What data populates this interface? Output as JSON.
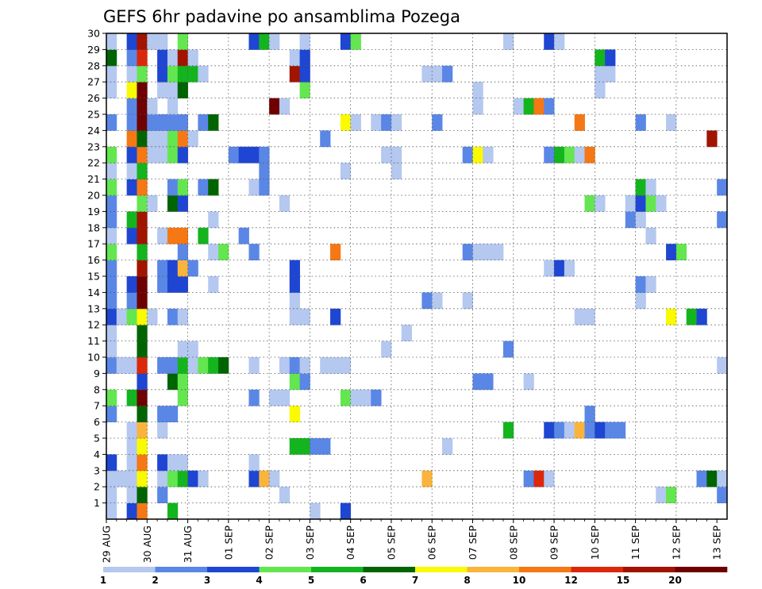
{
  "chart_data": {
    "type": "heatmap",
    "title": "GEFS 6hr padavine po ansamblima Pozega",
    "xlabel": "",
    "ylabel": "",
    "x_tick_labels": [
      "29 AUG",
      "30 AUG",
      "31 AUG",
      "01 SEP",
      "02 SEP",
      "03 SEP",
      "04 SEP",
      "05 SEP",
      "06 SEP",
      "07 SEP",
      "08 SEP",
      "09 SEP",
      "10 SEP",
      "11 SEP",
      "12 SEP",
      "13 SEP"
    ],
    "xlim": [
      0,
      61
    ],
    "y_tick_labels": [
      "1",
      "2",
      "3",
      "4",
      "5",
      "6",
      "7",
      "8",
      "9",
      "10",
      "11",
      "12",
      "13",
      "14",
      "15",
      "16",
      "17",
      "18",
      "19",
      "20",
      "21",
      "22",
      "23",
      "24",
      "25",
      "26",
      "27",
      "28",
      "29",
      "30"
    ],
    "ylim": [
      0,
      30
    ],
    "grid": true,
    "colorbar": {
      "levels": [
        1,
        2,
        3,
        4,
        5,
        6,
        7,
        8,
        10,
        12,
        15,
        20
      ],
      "labels": [
        "1",
        "2",
        "3",
        "4",
        "5",
        "6",
        "7",
        "8",
        "10",
        "12",
        "15",
        "20"
      ],
      "colors": [
        "#b4c8f0",
        "#5a87e6",
        "#1e46d2",
        "#64e650",
        "#14b41e",
        "#006400",
        "#fafa00",
        "#fab43c",
        "#f57814",
        "#dc280a",
        "#a01400",
        "#6e0000"
      ]
    },
    "member_rows": {
      "1": [
        [
          0,
          1,
          1
        ],
        [
          2,
          1,
          3
        ],
        [
          3,
          1,
          9
        ],
        [
          6,
          1,
          5
        ],
        [
          20,
          1,
          1
        ],
        [
          23,
          1,
          3
        ]
      ],
      "2": [
        [
          0,
          1,
          1
        ],
        [
          2,
          1,
          1
        ],
        [
          3,
          1,
          6
        ],
        [
          5,
          1,
          2
        ],
        [
          17,
          1,
          1
        ],
        [
          54,
          1,
          1
        ],
        [
          55,
          1,
          4
        ],
        [
          60,
          1,
          2
        ]
      ],
      "3": [
        [
          0,
          2,
          1
        ],
        [
          2,
          1,
          1
        ],
        [
          3,
          1,
          7
        ],
        [
          5,
          1,
          1
        ],
        [
          6,
          1,
          4
        ],
        [
          7,
          1,
          5
        ],
        [
          8,
          1,
          3
        ],
        [
          9,
          1,
          1
        ],
        [
          14,
          1,
          3
        ],
        [
          15,
          1,
          8
        ],
        [
          16,
          1,
          1
        ],
        [
          31,
          1,
          8
        ],
        [
          41,
          1,
          2
        ],
        [
          42,
          1,
          10
        ],
        [
          43,
          1,
          1
        ],
        [
          58,
          1,
          2
        ],
        [
          59,
          1,
          6
        ],
        [
          60,
          1,
          1
        ]
      ],
      "4": [
        [
          0,
          1,
          3
        ],
        [
          2,
          1,
          1
        ],
        [
          3,
          1,
          9
        ],
        [
          5,
          1,
          3
        ],
        [
          6,
          2,
          1
        ],
        [
          14,
          1,
          1
        ]
      ],
      "5": [
        [
          2,
          1,
          1
        ],
        [
          3,
          1,
          7
        ],
        [
          18,
          2,
          5
        ],
        [
          20,
          2,
          2
        ],
        [
          33,
          1,
          1
        ]
      ],
      "6": [
        [
          2,
          1,
          1
        ],
        [
          3,
          1,
          8
        ],
        [
          5,
          1,
          1
        ],
        [
          39,
          1,
          5
        ],
        [
          43,
          1,
          3
        ],
        [
          44,
          1,
          2
        ],
        [
          45,
          1,
          1
        ],
        [
          46,
          1,
          8
        ],
        [
          47,
          1,
          2
        ],
        [
          48,
          1,
          3
        ],
        [
          49,
          2,
          2
        ]
      ],
      "7": [
        [
          0,
          1,
          2
        ],
        [
          3,
          1,
          6
        ],
        [
          5,
          2,
          2
        ],
        [
          18,
          1,
          7
        ],
        [
          47,
          1,
          2
        ]
      ],
      "8": [
        [
          0,
          1,
          4
        ],
        [
          2,
          1,
          5
        ],
        [
          3,
          1,
          12
        ],
        [
          7,
          1,
          4
        ],
        [
          14,
          1,
          2
        ],
        [
          16,
          2,
          1
        ],
        [
          23,
          1,
          4
        ],
        [
          24,
          2,
          1
        ],
        [
          26,
          1,
          2
        ]
      ],
      "9": [
        [
          3,
          1,
          3
        ],
        [
          6,
          1,
          6
        ],
        [
          7,
          1,
          4
        ],
        [
          18,
          1,
          4
        ],
        [
          19,
          1,
          2
        ],
        [
          36,
          2,
          2
        ],
        [
          41,
          1,
          1
        ]
      ],
      "10": [
        [
          0,
          1,
          2
        ],
        [
          1,
          1,
          1
        ],
        [
          2,
          1,
          1
        ],
        [
          3,
          1,
          10
        ],
        [
          5,
          2,
          2
        ],
        [
          7,
          1,
          5
        ],
        [
          8,
          1,
          1
        ],
        [
          9,
          1,
          4
        ],
        [
          10,
          1,
          5
        ],
        [
          11,
          1,
          6
        ],
        [
          14,
          1,
          1
        ],
        [
          17,
          1,
          1
        ],
        [
          18,
          1,
          2
        ],
        [
          19,
          1,
          1
        ],
        [
          21,
          3,
          1
        ],
        [
          60,
          1,
          1
        ]
      ],
      "11": [
        [
          0,
          1,
          1
        ],
        [
          3,
          1,
          6
        ],
        [
          7,
          2,
          1
        ],
        [
          27,
          1,
          1
        ],
        [
          39,
          1,
          2
        ]
      ],
      "12": [
        [
          0,
          1,
          1
        ],
        [
          3,
          1,
          6
        ],
        [
          29,
          1,
          1
        ]
      ],
      "13": [
        [
          0,
          1,
          3
        ],
        [
          1,
          1,
          1
        ],
        [
          2,
          1,
          4
        ],
        [
          3,
          1,
          7
        ],
        [
          4,
          1,
          1
        ],
        [
          6,
          1,
          2
        ],
        [
          7,
          1,
          1
        ],
        [
          18,
          2,
          1
        ],
        [
          22,
          1,
          3
        ],
        [
          46,
          2,
          1
        ],
        [
          55,
          1,
          7
        ],
        [
          57,
          1,
          5
        ],
        [
          58,
          1,
          3
        ]
      ],
      "14": [
        [
          0,
          1,
          2
        ],
        [
          2,
          1,
          2
        ],
        [
          3,
          1,
          12
        ],
        [
          18,
          1,
          1
        ],
        [
          31,
          1,
          2
        ],
        [
          32,
          1,
          1
        ],
        [
          35,
          1,
          1
        ],
        [
          52,
          1,
          1
        ]
      ],
      "15": [
        [
          0,
          1,
          2
        ],
        [
          2,
          1,
          3
        ],
        [
          3,
          1,
          12
        ],
        [
          5,
          1,
          2
        ],
        [
          6,
          2,
          3
        ],
        [
          10,
          1,
          1
        ],
        [
          18,
          1,
          3
        ],
        [
          52,
          1,
          2
        ],
        [
          53,
          1,
          1
        ]
      ],
      "16": [
        [
          0,
          1,
          2
        ],
        [
          3,
          1,
          11
        ],
        [
          5,
          1,
          2
        ],
        [
          6,
          1,
          3
        ],
        [
          7,
          1,
          8
        ],
        [
          8,
          1,
          2
        ],
        [
          18,
          1,
          3
        ],
        [
          43,
          1,
          1
        ],
        [
          44,
          1,
          3
        ],
        [
          45,
          1,
          1
        ]
      ],
      "17": [
        [
          0,
          1,
          4
        ],
        [
          3,
          1,
          5
        ],
        [
          7,
          1,
          2
        ],
        [
          10,
          1,
          1
        ],
        [
          11,
          1,
          4
        ],
        [
          14,
          1,
          2
        ],
        [
          22,
          1,
          9
        ],
        [
          35,
          1,
          2
        ],
        [
          36,
          3,
          1
        ],
        [
          55,
          1,
          3
        ],
        [
          56,
          1,
          4
        ]
      ],
      "18": [
        [
          0,
          1,
          1
        ],
        [
          2,
          1,
          3
        ],
        [
          3,
          1,
          11
        ],
        [
          5,
          1,
          1
        ],
        [
          6,
          2,
          9
        ],
        [
          9,
          1,
          5
        ],
        [
          13,
          1,
          2
        ],
        [
          53,
          1,
          1
        ]
      ],
      "19": [
        [
          0,
          1,
          2
        ],
        [
          2,
          1,
          5
        ],
        [
          3,
          1,
          11
        ],
        [
          10,
          1,
          1
        ],
        [
          51,
          1,
          2
        ],
        [
          52,
          1,
          1
        ],
        [
          60,
          1,
          2
        ]
      ],
      "20": [
        [
          0,
          1,
          2
        ],
        [
          3,
          1,
          4
        ],
        [
          4,
          1,
          1
        ],
        [
          6,
          1,
          6
        ],
        [
          7,
          1,
          3
        ],
        [
          17,
          1,
          1
        ],
        [
          47,
          1,
          4
        ],
        [
          48,
          1,
          1
        ],
        [
          51,
          1,
          1
        ],
        [
          52,
          1,
          3
        ],
        [
          53,
          1,
          4
        ],
        [
          54,
          1,
          1
        ]
      ],
      "21": [
        [
          0,
          1,
          4
        ],
        [
          2,
          1,
          3
        ],
        [
          3,
          1,
          9
        ],
        [
          6,
          1,
          2
        ],
        [
          7,
          1,
          4
        ],
        [
          9,
          1,
          2
        ],
        [
          10,
          1,
          6
        ],
        [
          14,
          1,
          1
        ],
        [
          15,
          1,
          2
        ],
        [
          52,
          1,
          5
        ],
        [
          53,
          1,
          1
        ],
        [
          60,
          1,
          2
        ]
      ],
      "22": [
        [
          0,
          1,
          1
        ],
        [
          2,
          1,
          1
        ],
        [
          3,
          1,
          5
        ],
        [
          15,
          1,
          2
        ],
        [
          23,
          1,
          1
        ],
        [
          28,
          1,
          1
        ]
      ],
      "23": [
        [
          0,
          1,
          4
        ],
        [
          2,
          1,
          3
        ],
        [
          3,
          1,
          9
        ],
        [
          4,
          1,
          1
        ],
        [
          5,
          1,
          1
        ],
        [
          6,
          1,
          4
        ],
        [
          7,
          1,
          3
        ],
        [
          12,
          1,
          2
        ],
        [
          13,
          2,
          3
        ],
        [
          15,
          1,
          2
        ],
        [
          27,
          2,
          1
        ],
        [
          35,
          1,
          2
        ],
        [
          36,
          1,
          7
        ],
        [
          37,
          1,
          1
        ],
        [
          43,
          1,
          2
        ],
        [
          44,
          1,
          5
        ],
        [
          45,
          1,
          4
        ],
        [
          46,
          1,
          1
        ],
        [
          47,
          1,
          9
        ]
      ],
      "24": [
        [
          2,
          1,
          9
        ],
        [
          3,
          1,
          6
        ],
        [
          4,
          2,
          1
        ],
        [
          6,
          1,
          4
        ],
        [
          7,
          1,
          9
        ],
        [
          8,
          1,
          1
        ],
        [
          21,
          1,
          2
        ],
        [
          59,
          1,
          11
        ]
      ],
      "25": [
        [
          0,
          1,
          2
        ],
        [
          2,
          1,
          2
        ],
        [
          3,
          1,
          12
        ],
        [
          4,
          2,
          2
        ],
        [
          6,
          2,
          2
        ],
        [
          9,
          1,
          2
        ],
        [
          10,
          1,
          6
        ],
        [
          23,
          1,
          7
        ],
        [
          24,
          1,
          1
        ],
        [
          26,
          1,
          1
        ],
        [
          27,
          1,
          2
        ],
        [
          28,
          1,
          1
        ],
        [
          32,
          1,
          2
        ],
        [
          46,
          1,
          9
        ],
        [
          52,
          1,
          2
        ],
        [
          55,
          1,
          1
        ]
      ],
      "26": [
        [
          2,
          1,
          2
        ],
        [
          3,
          1,
          12
        ],
        [
          4,
          1,
          1
        ],
        [
          6,
          1,
          1
        ],
        [
          16,
          1,
          12
        ],
        [
          17,
          1,
          1
        ],
        [
          36,
          1,
          1
        ],
        [
          40,
          1,
          1
        ],
        [
          41,
          1,
          5
        ],
        [
          42,
          1,
          9
        ],
        [
          43,
          1,
          2
        ]
      ],
      "27": [
        [
          0,
          1,
          1
        ],
        [
          2,
          1,
          7
        ],
        [
          3,
          1,
          12
        ],
        [
          5,
          2,
          1
        ],
        [
          7,
          1,
          6
        ],
        [
          19,
          1,
          4
        ],
        [
          36,
          1,
          1
        ],
        [
          48,
          1,
          1
        ]
      ],
      "28": [
        [
          0,
          1,
          1
        ],
        [
          2,
          1,
          1
        ],
        [
          3,
          1,
          4
        ],
        [
          5,
          1,
          3
        ],
        [
          6,
          1,
          4
        ],
        [
          7,
          1,
          5
        ],
        [
          8,
          1,
          5
        ],
        [
          9,
          1,
          1
        ],
        [
          18,
          1,
          11
        ],
        [
          19,
          1,
          3
        ],
        [
          31,
          2,
          1
        ],
        [
          33,
          1,
          2
        ],
        [
          48,
          2,
          1
        ]
      ],
      "29": [
        [
          0,
          1,
          6
        ],
        [
          2,
          1,
          2
        ],
        [
          3,
          1,
          10
        ],
        [
          5,
          1,
          3
        ],
        [
          6,
          1,
          1
        ],
        [
          7,
          1,
          11
        ],
        [
          8,
          1,
          1
        ],
        [
          18,
          1,
          1
        ],
        [
          19,
          1,
          3
        ],
        [
          48,
          1,
          5
        ],
        [
          49,
          1,
          3
        ]
      ],
      "30": [
        [
          0,
          1,
          1
        ],
        [
          2,
          1,
          3
        ],
        [
          3,
          1,
          11
        ],
        [
          4,
          1,
          1
        ],
        [
          5,
          1,
          1
        ],
        [
          7,
          1,
          4
        ],
        [
          14,
          1,
          3
        ],
        [
          15,
          1,
          5
        ],
        [
          16,
          1,
          1
        ],
        [
          19,
          1,
          1
        ],
        [
          23,
          1,
          3
        ],
        [
          24,
          1,
          4
        ],
        [
          39,
          1,
          1
        ],
        [
          43,
          1,
          3
        ],
        [
          44,
          1,
          1
        ]
      ]
    }
  }
}
